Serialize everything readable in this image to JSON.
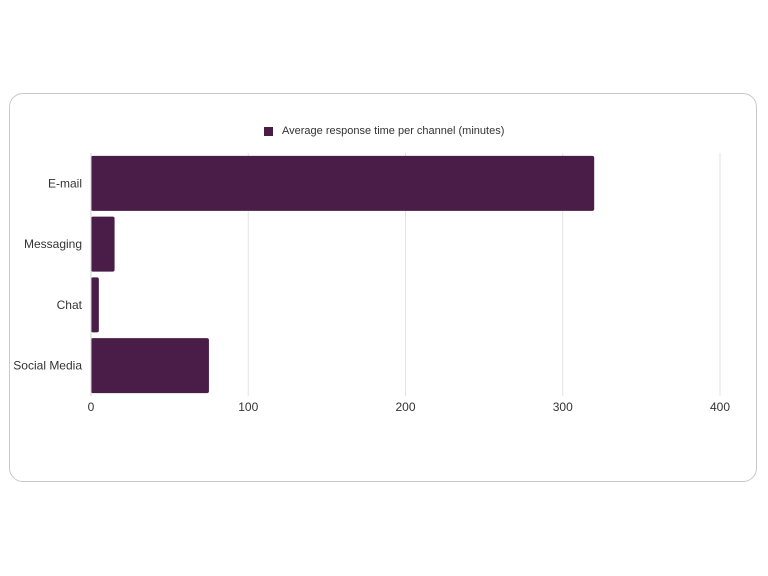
{
  "chart_data": {
    "type": "bar",
    "orientation": "horizontal",
    "categories": [
      "E-mail",
      "Messaging",
      "Chat",
      "Social Media"
    ],
    "series": [
      {
        "name": "Average response time per channel (minutes)",
        "values": [
          320,
          15,
          5,
          75
        ],
        "color": "#4a1c48"
      }
    ],
    "xlim": [
      0,
      400
    ],
    "xticks": [
      0,
      100,
      200,
      300,
      400
    ],
    "grid": true,
    "legend_position": "top-center"
  }
}
